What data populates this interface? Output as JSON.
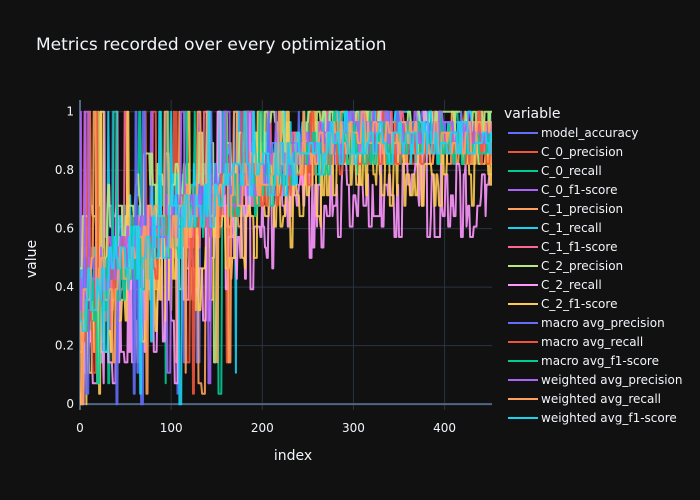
{
  "chart_data": {
    "type": "line",
    "title": "Metrics recorded over every optimization",
    "xlabel": "index",
    "ylabel": "value",
    "xlim": [
      0,
      452
    ],
    "ylim": [
      -0.02,
      1.04
    ],
    "x_ticks": [
      0,
      100,
      200,
      300,
      400
    ],
    "y_ticks": [
      0,
      0.2,
      0.4,
      0.6,
      0.8,
      1
    ],
    "y_tick_labels": [
      "0",
      "0.2",
      "0.4",
      "0.6",
      "0.8",
      "1"
    ],
    "grid": true,
    "legend_title": "variable",
    "legend_position": "right",
    "background": "#111111",
    "series": [
      {
        "name": "model_accuracy",
        "color": "#636efa",
        "seed": 11,
        "start": 0.35,
        "end": 0.92,
        "noise": 0.1
      },
      {
        "name": "C_0_precision",
        "color": "#EF553B",
        "seed": 23,
        "start": 0.3,
        "end": 0.9,
        "noise": 0.12
      },
      {
        "name": "C_0_recall",
        "color": "#00cc96",
        "seed": 37,
        "start": 0.45,
        "end": 0.88,
        "noise": 0.12
      },
      {
        "name": "C_0_f1-score",
        "color": "#ab63fa",
        "seed": 41,
        "start": 0.35,
        "end": 0.9,
        "noise": 0.1
      },
      {
        "name": "C_1_precision",
        "color": "#FFA15A",
        "seed": 53,
        "start": 0.25,
        "end": 0.9,
        "noise": 0.14
      },
      {
        "name": "C_1_recall",
        "color": "#19d3f3",
        "seed": 67,
        "start": 0.4,
        "end": 0.92,
        "noise": 0.14
      },
      {
        "name": "C_1_f1-score",
        "color": "#FF6692",
        "seed": 71,
        "start": 0.32,
        "end": 0.9,
        "noise": 0.11
      },
      {
        "name": "C_2_precision",
        "color": "#B6E880",
        "seed": 83,
        "start": 0.55,
        "end": 0.97,
        "noise": 0.14
      },
      {
        "name": "C_2_recall",
        "color": "#FF97FF",
        "seed": 97,
        "start": 0.15,
        "end": 0.7,
        "noise": 0.2
      },
      {
        "name": "C_2_f1-score",
        "color": "#FECB52",
        "seed": 101,
        "start": 0.1,
        "end": 0.8,
        "noise": 0.18
      },
      {
        "name": "macro avg_precision",
        "color": "#636efa",
        "seed": 113,
        "start": 0.35,
        "end": 0.93,
        "noise": 0.09
      },
      {
        "name": "macro avg_recall",
        "color": "#EF553B",
        "seed": 127,
        "start": 0.3,
        "end": 0.88,
        "noise": 0.1
      },
      {
        "name": "macro avg_f1-score",
        "color": "#00cc96",
        "seed": 131,
        "start": 0.3,
        "end": 0.89,
        "noise": 0.1
      },
      {
        "name": "weighted avg_precision",
        "color": "#ab63fa",
        "seed": 149,
        "start": 0.36,
        "end": 0.92,
        "noise": 0.09
      },
      {
        "name": "weighted avg_recall",
        "color": "#FFA15A",
        "seed": 157,
        "start": 0.35,
        "end": 0.91,
        "noise": 0.1
      },
      {
        "name": "weighted avg_f1-score",
        "color": "#19d3f3",
        "seed": 163,
        "start": 0.34,
        "end": 0.9,
        "noise": 0.1
      }
    ]
  }
}
